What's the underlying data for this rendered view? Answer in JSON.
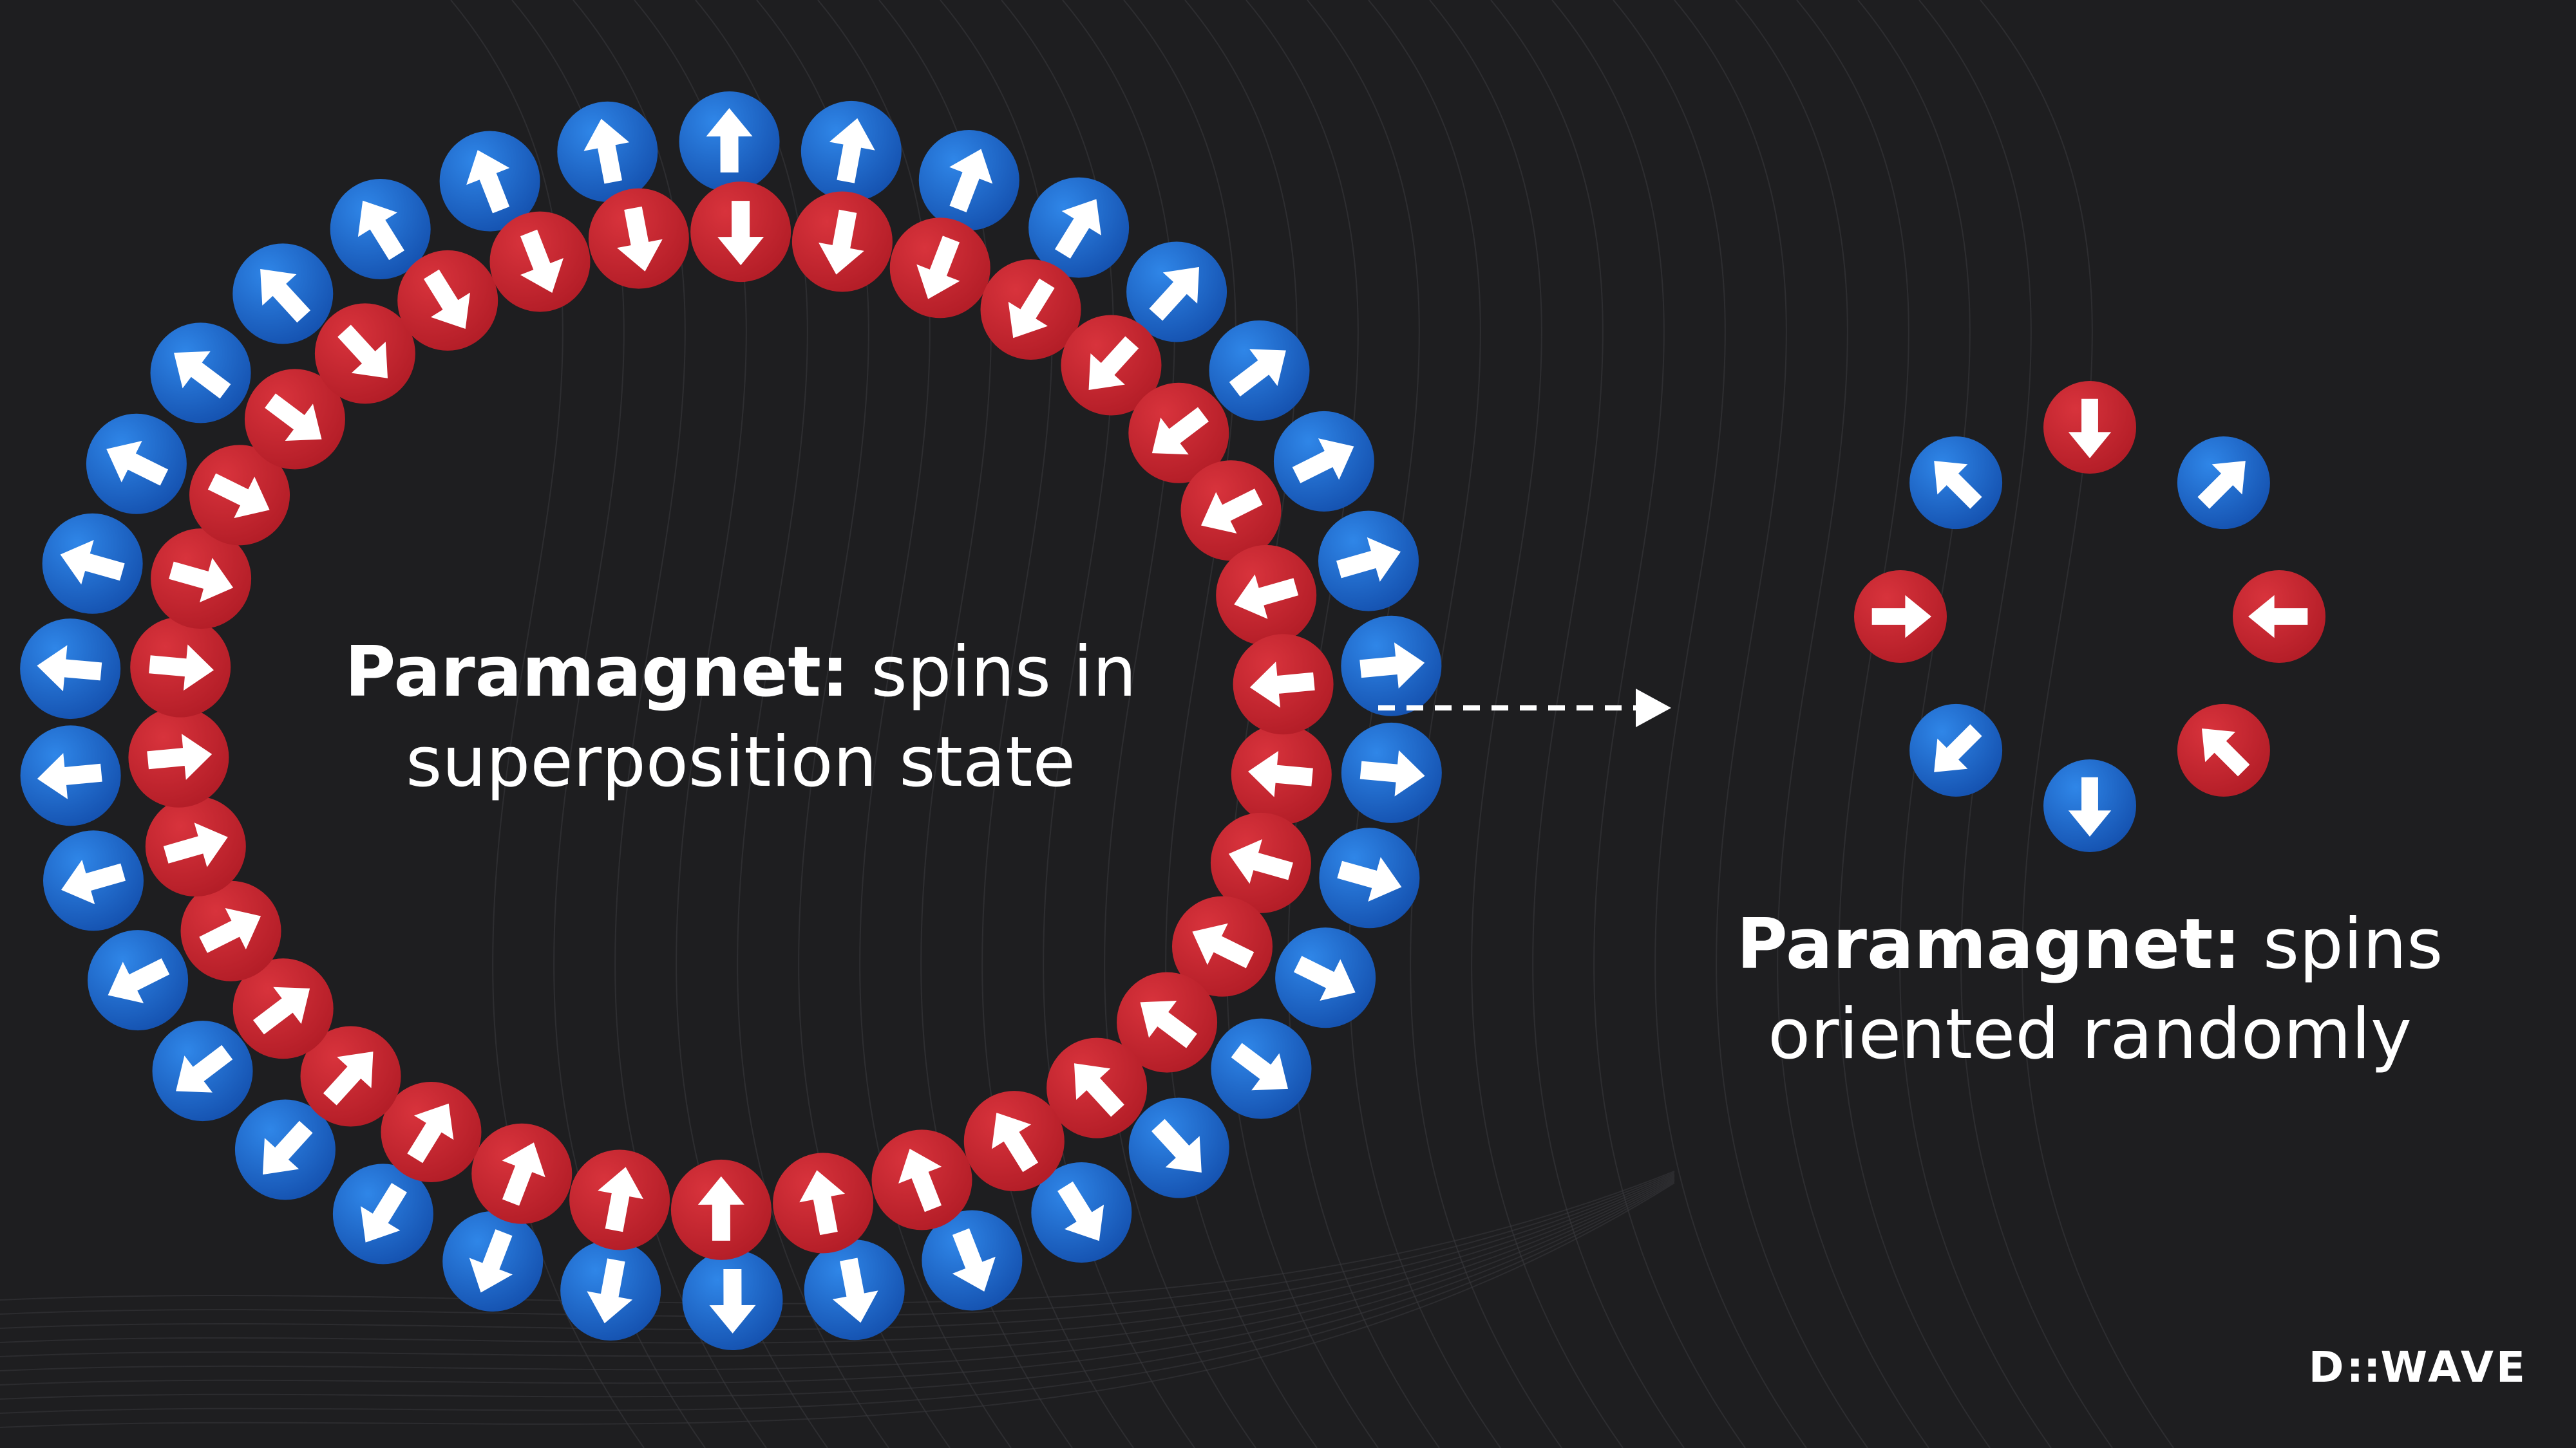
{
  "colors": {
    "background": "#1e1e20",
    "spin_up_red": "#c8262f",
    "spin_blue": "#1e66c8",
    "text": "#ffffff",
    "grid_line": "#4a4a4e"
  },
  "left_caption": {
    "bold": "Paramagnet:",
    "rest_line1": " spins in",
    "line2": "superposition state"
  },
  "right_caption": {
    "bold": "Paramagnet:",
    "rest_line1": " spins",
    "line2": "oriented randomly"
  },
  "logo": {
    "text": "D::Wave"
  },
  "spin_ring_superposition": {
    "pairs": 34,
    "description_icons": [
      "red-spin-icon",
      "blue-spin-icon"
    ]
  },
  "spin_ring_random": {
    "spins": [
      {
        "color": "red",
        "direction_deg": 180
      },
      {
        "color": "blue",
        "direction_deg": 45
      },
      {
        "color": "red",
        "direction_deg": 270
      },
      {
        "color": "red",
        "direction_deg": 315
      },
      {
        "color": "blue",
        "direction_deg": 180
      },
      {
        "color": "blue",
        "direction_deg": 225
      },
      {
        "color": "red",
        "direction_deg": 90
      },
      {
        "color": "blue",
        "direction_deg": 315
      }
    ]
  }
}
